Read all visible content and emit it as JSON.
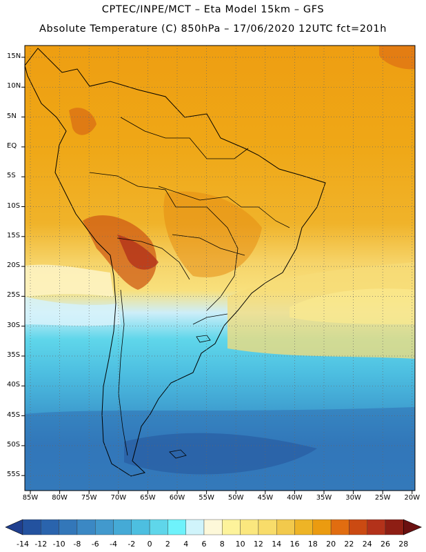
{
  "header": {
    "line1": "CPTEC/INPE/MCT –  Eta Model 15km – GFS",
    "line2": "Absolute Temperature (C) 850hPa – 17/06/2020 12UTC fct=201h"
  },
  "map": {
    "region": "South America",
    "lat_labels": [
      "15N",
      "10N",
      "5N",
      "EQ",
      "5S",
      "10S",
      "15S",
      "20S",
      "25S",
      "30S",
      "35S",
      "40S",
      "45S",
      "50S",
      "55S"
    ],
    "lon_labels": [
      "85W",
      "80W",
      "75W",
      "70W",
      "65W",
      "60W",
      "55W",
      "50W",
      "45W",
      "40W",
      "35W",
      "30W",
      "25W",
      "20W"
    ]
  },
  "colorbar": {
    "labels": [
      "-14",
      "-12",
      "-10",
      "-8",
      "-6",
      "-4",
      "-2",
      "0",
      "2",
      "4",
      "6",
      "8",
      "10",
      "12",
      "14",
      "16",
      "18",
      "20",
      "22",
      "24",
      "26",
      "28"
    ],
    "colors": [
      "#1f3f8f",
      "#23529f",
      "#2a64ad",
      "#3377b9",
      "#3b88c4",
      "#4299cd",
      "#45aad6",
      "#4dbfe0",
      "#5fd6ea",
      "#6ef2fb",
      "#d0f4fb",
      "#fdf8d9",
      "#fdf39b",
      "#fbe77e",
      "#f8dc6a",
      "#f2c94c",
      "#eeb426",
      "#eb9b10",
      "#e16d10",
      "#cb4a12",
      "#b3321a",
      "#8e1e14",
      "#6a1010"
    ]
  }
}
